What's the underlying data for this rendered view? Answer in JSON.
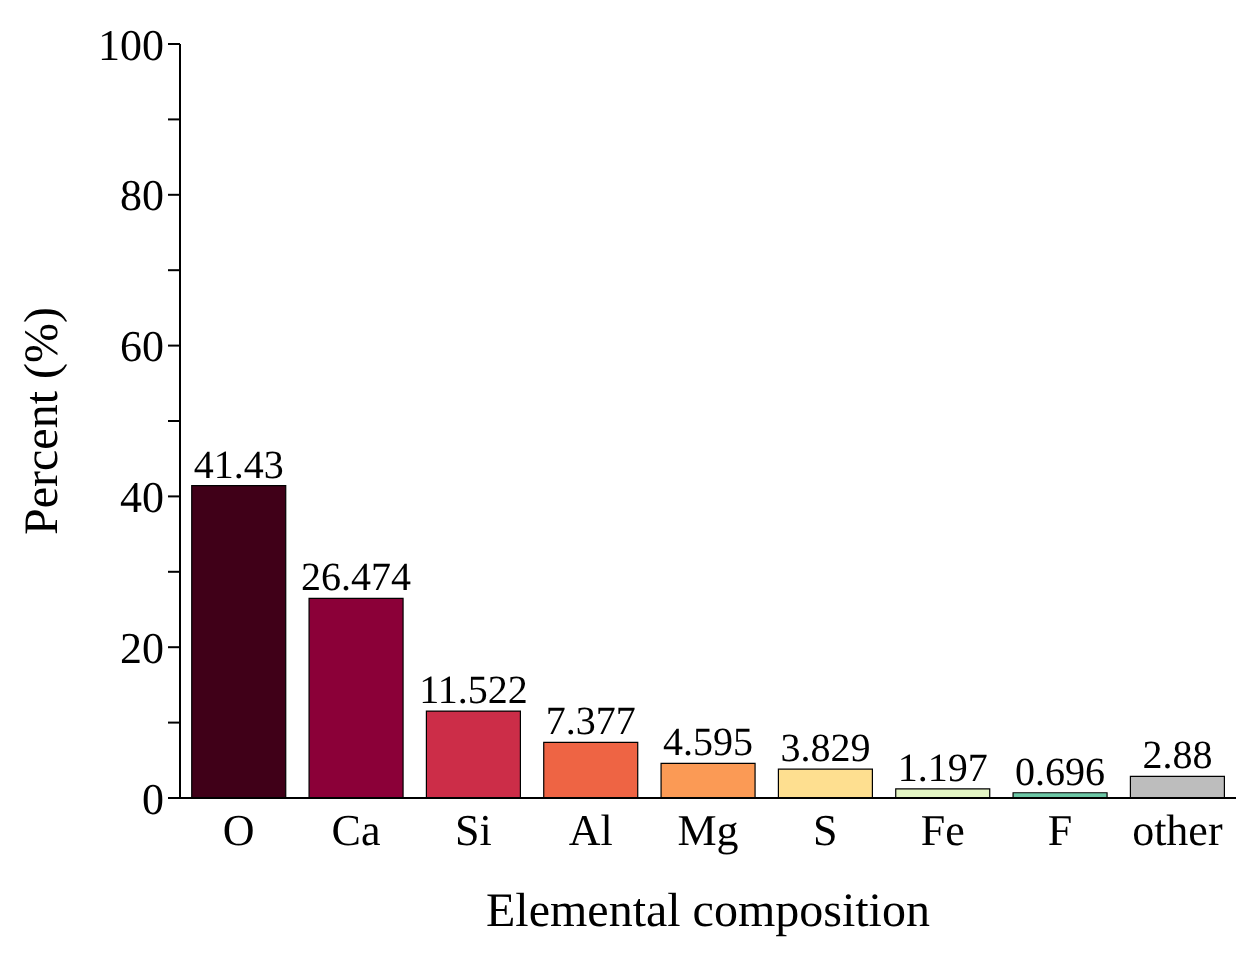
{
  "chart_data": {
    "type": "bar",
    "xlabel": "Elemental composition",
    "ylabel": "Percent (%)",
    "categories": [
      "O",
      "Ca",
      "Si",
      "Al",
      "Mg",
      "S",
      "Fe",
      "F",
      "other"
    ],
    "values": [
      41.43,
      26.474,
      11.522,
      7.377,
      4.595,
      3.829,
      1.197,
      0.696,
      2.88
    ],
    "colors": [
      "#400018",
      "#8b0038",
      "#cc2d48",
      "#ee6444",
      "#fb9a55",
      "#fedf90",
      "#e4f5c4",
      "#6cc7a6",
      "#bdbdbd"
    ],
    "ylim": [
      0,
      100
    ],
    "yticks": [
      0,
      {
        "value": 10,
        "label": null
      },
      20,
      {
        "value": 30,
        "label": null
      },
      40,
      {
        "value": 50,
        "label": null
      },
      60,
      {
        "value": 70,
        "label": null
      },
      80,
      {
        "value": 90,
        "label": null
      },
      100
    ],
    "data_labels": true,
    "grid": false
  }
}
